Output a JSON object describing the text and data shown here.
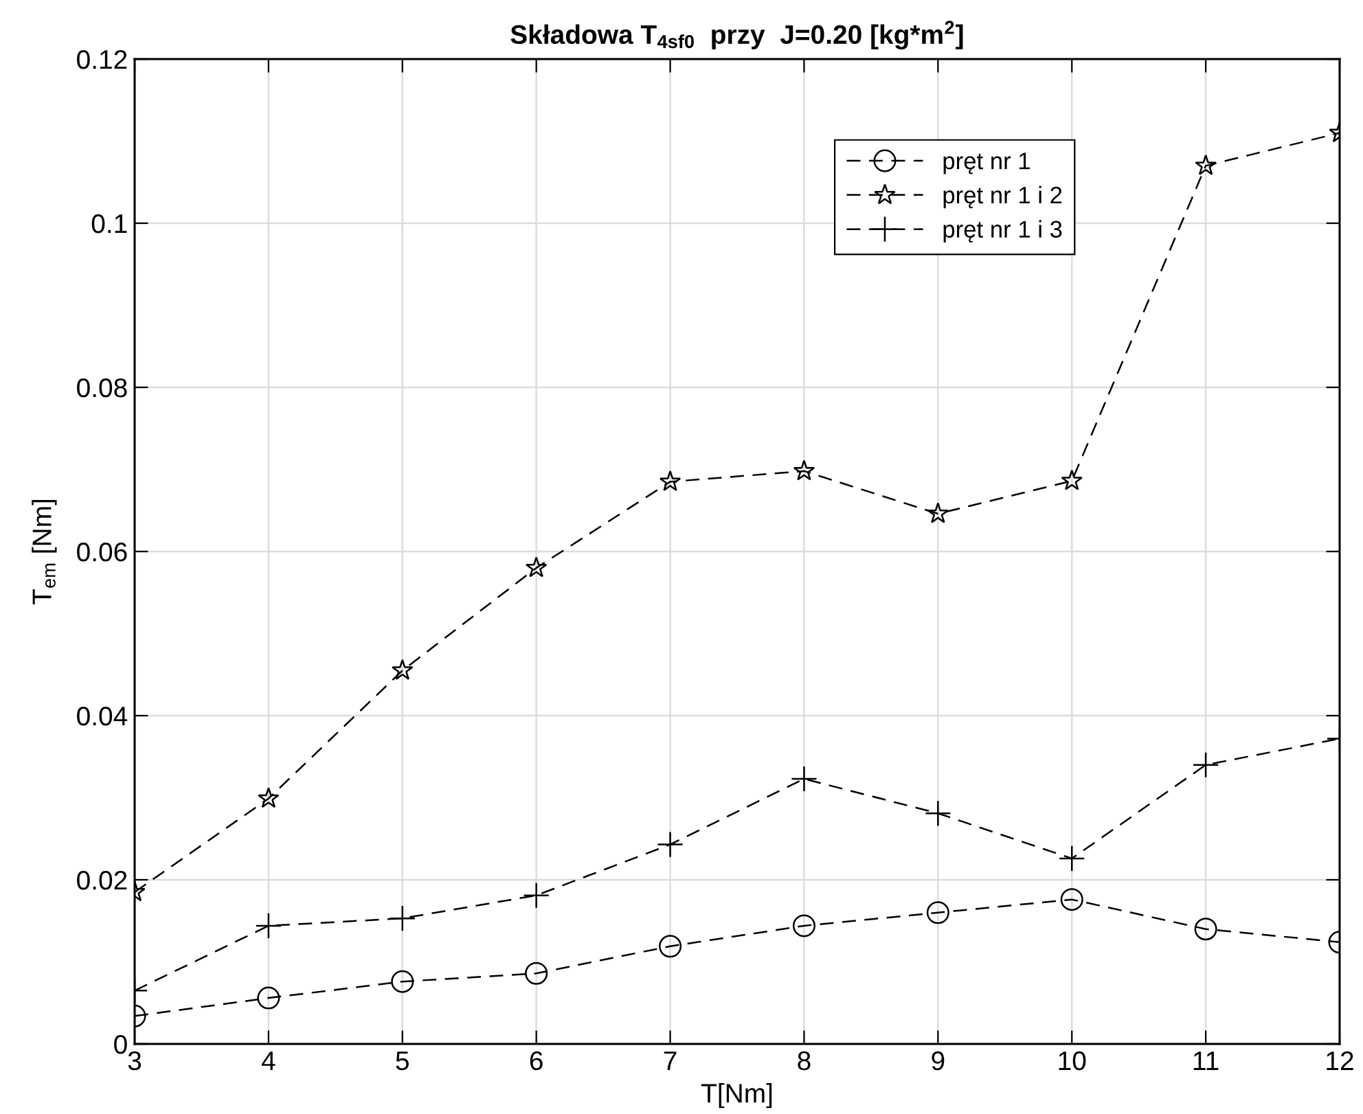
{
  "chart_data": {
    "type": "line",
    "title": "Składowa T$_{4sf0}$  przy  J=0.20 [kg*m$^{2}$]",
    "xlabel": "T[Nm]",
    "ylabel": "T$_{em}$ [Nm]",
    "x": [
      3,
      4,
      5,
      6,
      7,
      8,
      9,
      10,
      11,
      12
    ],
    "series": [
      {
        "name": "pręt nr 1",
        "color": "#000000",
        "marker": "circle",
        "values": [
          0.0034,
          0.0056,
          0.0076,
          0.0086,
          0.0119,
          0.0144,
          0.016,
          0.0176,
          0.014,
          0.0124
        ]
      },
      {
        "name": "pręt nr 1 i 2",
        "color": "#000000",
        "marker": "star",
        "values": [
          0.0185,
          0.0299,
          0.0455,
          0.058,
          0.0685,
          0.0698,
          0.0646,
          0.0686,
          0.107,
          0.111
        ]
      },
      {
        "name": "pręt nr 1 i 3",
        "color": "#000000",
        "marker": "cross",
        "values": [
          0.0065,
          0.0144,
          0.0153,
          0.0181,
          0.0243,
          0.0323,
          0.0281,
          0.0226,
          0.034,
          0.0372
        ]
      }
    ],
    "line_style": "dashed",
    "xlim": [
      3,
      12
    ],
    "xticks": [
      3,
      4,
      5,
      6,
      7,
      8,
      9,
      10,
      11,
      12
    ],
    "ylim": [
      0,
      0.12
    ],
    "yticks": [
      0,
      0.02,
      0.04,
      0.06,
      0.08,
      0.1,
      0.12
    ],
    "grid": true,
    "legend": "top right"
  }
}
